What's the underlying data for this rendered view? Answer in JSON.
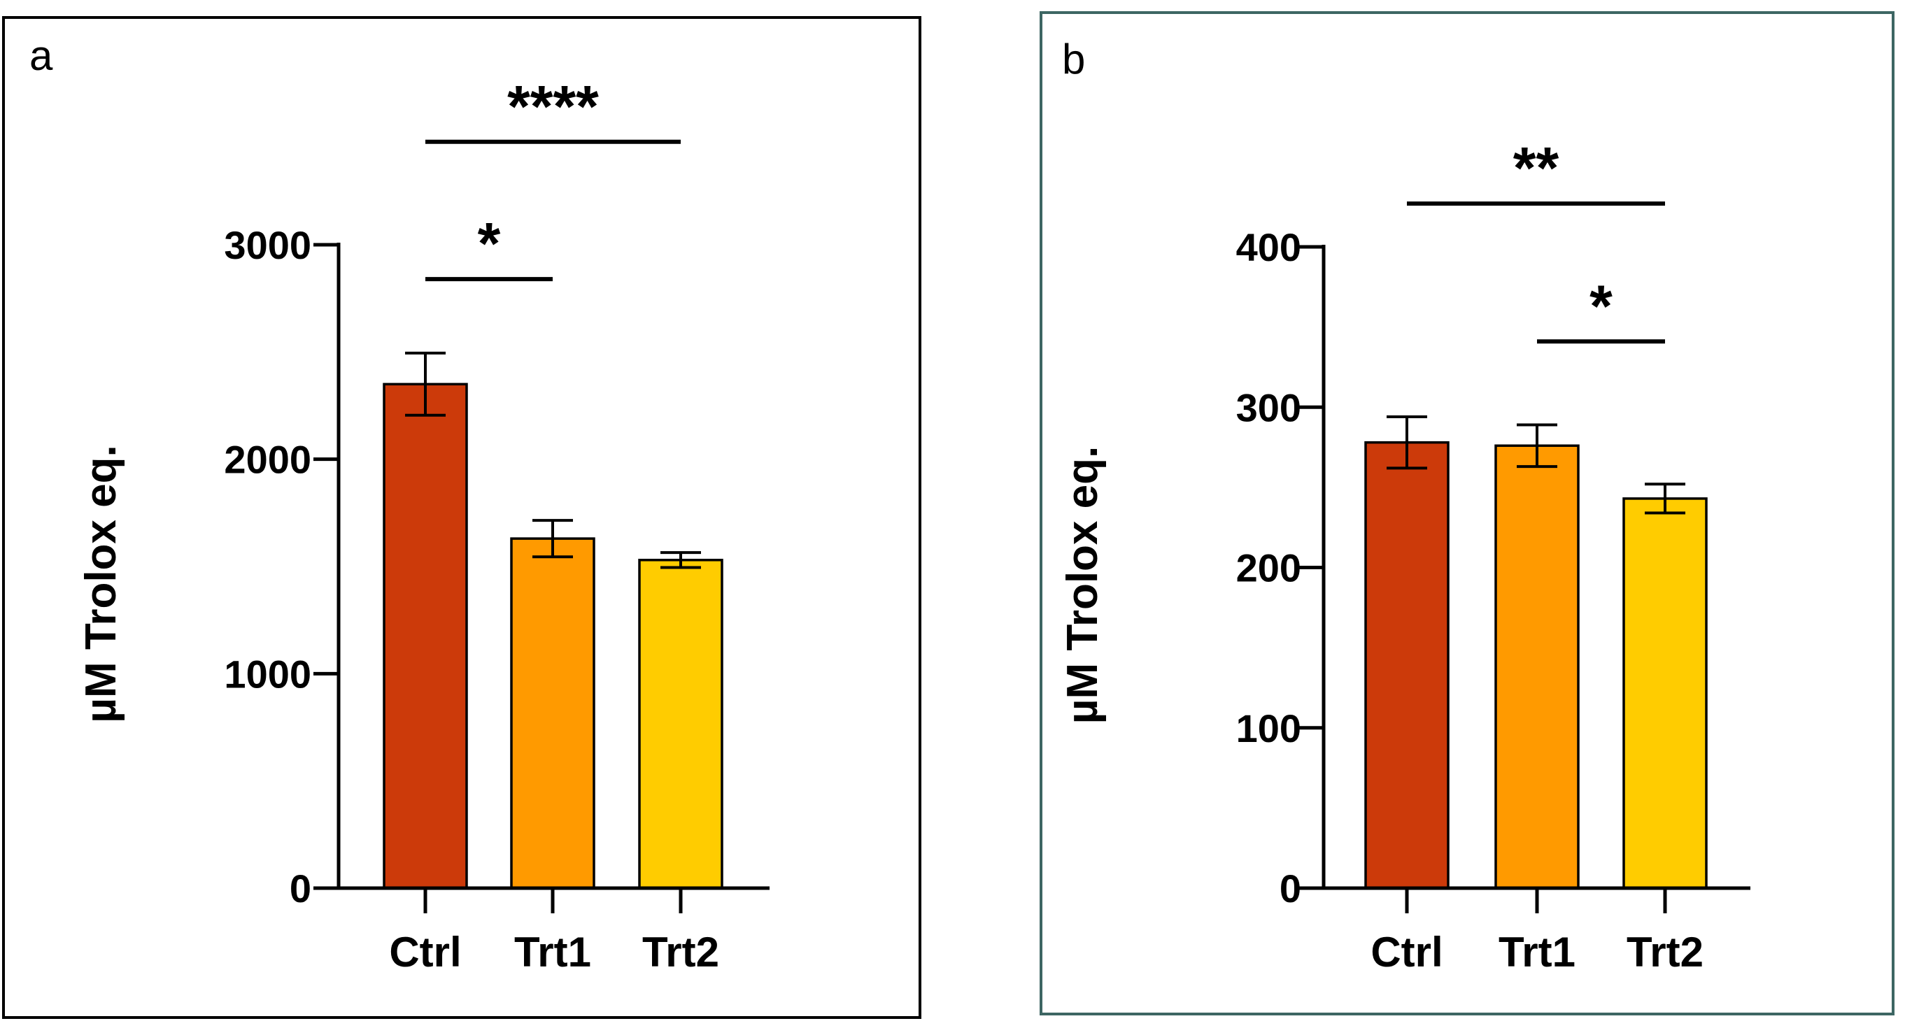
{
  "chart_data": [
    {
      "panel": "a",
      "type": "bar",
      "categories": [
        "Ctrl",
        "Trt1",
        "Trt2"
      ],
      "values": [
        2350,
        1630,
        1530
      ],
      "errors": [
        145,
        85,
        35
      ],
      "colors": [
        "#cc3a0a",
        "#ff9a00",
        "#ffcc00"
      ],
      "ylabel": "µM Trolox eq.",
      "xlabel": "",
      "ylim": [
        0,
        3000
      ],
      "yticks": [
        0,
        1000,
        2000,
        3000
      ],
      "frame_color": "#000000",
      "significance": [
        {
          "from": 0,
          "to": 2,
          "label": "****",
          "y": 3480
        },
        {
          "from": 0,
          "to": 1,
          "label": "*",
          "y": 2840
        }
      ]
    },
    {
      "panel": "b",
      "type": "bar",
      "categories": [
        "Ctrl",
        "Trt1",
        "Trt2"
      ],
      "values": [
        278,
        276,
        243
      ],
      "errors": [
        16,
        13,
        9
      ],
      "colors": [
        "#cc3a0a",
        "#ff9a00",
        "#ffcc00"
      ],
      "ylabel": "µM Trolox eq.",
      "xlabel": "",
      "ylim": [
        0,
        400
      ],
      "yticks": [
        0,
        100,
        200,
        300,
        400
      ],
      "frame_color": "#3d6663",
      "significance": [
        {
          "from": 0,
          "to": 2,
          "label": "**",
          "y": 427
        },
        {
          "from": 1,
          "to": 2,
          "label": "*",
          "y": 341
        }
      ]
    }
  ]
}
